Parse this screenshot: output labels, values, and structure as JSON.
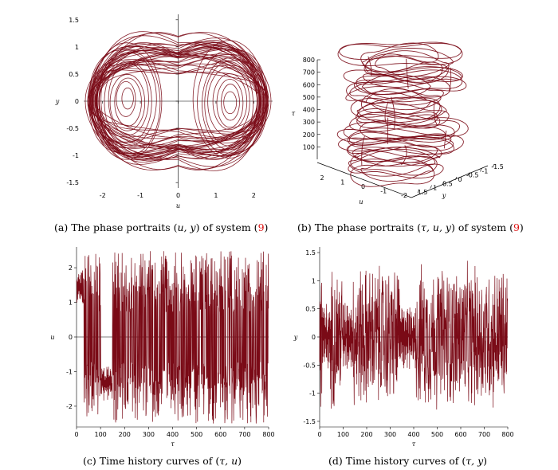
{
  "panels": {
    "a": {
      "caption": {
        "label": "(a)",
        "before": "The phase portraits (",
        "vars": "u, y",
        "after": ") of system (",
        "ref": "9",
        "close": ")"
      },
      "xlabel": "u",
      "ylabel": "y",
      "xticks": [
        "-2",
        "-1",
        "0",
        "1",
        "2"
      ],
      "yticks": [
        "1.5",
        "1",
        "0.5",
        "0",
        "-0.5",
        "-1",
        "-1.5"
      ]
    },
    "b": {
      "caption": {
        "label": "(b)",
        "before": "The phase portraits (",
        "vars": "τ, u, y",
        "after": ") of system (",
        "ref": "9",
        "close": ")"
      },
      "zlabel": "τ",
      "ulabel": "u",
      "ylabel": "y",
      "zticks": [
        "800",
        "700",
        "600",
        "500",
        "400",
        "300",
        "200",
        "100"
      ],
      "uticks": [
        "2",
        "1",
        "0",
        "-1",
        "-2"
      ],
      "yticks": [
        "1.5",
        "1",
        "0.5",
        "0",
        "-0.5",
        "-1",
        "-1.5"
      ]
    },
    "c": {
      "caption": {
        "label": "(c)",
        "before": "Time history curves of (",
        "vars": "τ, u",
        "after": ")",
        "ref": "",
        "close": ""
      },
      "xlabel": "τ",
      "ylabel": "u",
      "xticks": [
        "0",
        "100",
        "200",
        "300",
        "400",
        "500",
        "600",
        "700",
        "800"
      ],
      "yticks": [
        "2",
        "1",
        "0",
        "-1",
        "-2"
      ]
    },
    "d": {
      "caption": {
        "label": "(d)",
        "before": "Time history curves of (",
        "vars": "τ, y",
        "after": ")",
        "ref": "",
        "close": ""
      },
      "xlabel": "τ",
      "ylabel": "y",
      "xticks": [
        "0",
        "100",
        "200",
        "300",
        "400",
        "500",
        "600",
        "700",
        "800"
      ],
      "yticks": [
        "1.5",
        "1",
        "0.5",
        "0",
        "-0.5",
        "-1",
        "-1.5"
      ]
    }
  },
  "chart_data": [
    {
      "type": "line",
      "panel": "a",
      "kind": "phase-portrait",
      "xlabel": "u",
      "ylabel": "y",
      "xlim": [
        -2.5,
        2.5
      ],
      "ylim": [
        -1.6,
        1.6
      ],
      "color": "#7a0a16"
    },
    {
      "type": "line",
      "panel": "b",
      "kind": "3d-phase-portrait",
      "axes": [
        "τ",
        "u",
        "y"
      ],
      "zlim": [
        0,
        800
      ],
      "color": "#7a0a16"
    },
    {
      "type": "line",
      "panel": "c",
      "kind": "time-series",
      "xlabel": "τ",
      "ylabel": "u",
      "xlim": [
        0,
        800
      ],
      "ylim": [
        -2.6,
        2.6
      ],
      "color": "#7a0a16"
    },
    {
      "type": "line",
      "panel": "d",
      "kind": "time-series",
      "xlabel": "τ",
      "ylabel": "y",
      "xlim": [
        0,
        800
      ],
      "ylim": [
        -1.6,
        1.6
      ],
      "color": "#7a0a16"
    }
  ]
}
